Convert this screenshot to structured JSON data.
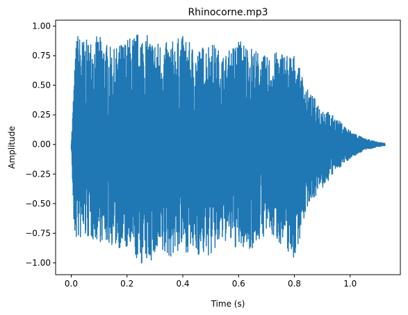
{
  "chart_data": {
    "type": "line",
    "title": "Rhinocorne.mp3",
    "xlabel": "Time (s)",
    "ylabel": "Amplitude",
    "xlim": [
      -0.056,
      1.18
    ],
    "ylim": [
      -1.1,
      1.05
    ],
    "xticks": [
      0.0,
      0.2,
      0.4,
      0.6,
      0.8,
      1.0
    ],
    "xtick_labels": [
      "0.0",
      "0.2",
      "0.4",
      "0.6",
      "0.8",
      "1.0"
    ],
    "yticks": [
      -1.0,
      -0.75,
      -0.5,
      -0.25,
      0.0,
      0.25,
      0.5,
      0.75,
      1.0
    ],
    "ytick_labels": [
      "−1.00",
      "−0.75",
      "−0.50",
      "−0.25",
      "0.00",
      "0.25",
      "0.50",
      "0.75",
      "1.00"
    ],
    "grid": false,
    "series": [
      {
        "color": "#1f77b4",
        "envelope": {
          "t": [
            0.0,
            0.005,
            0.01,
            0.02,
            0.05,
            0.1,
            0.15,
            0.2,
            0.25,
            0.3,
            0.35,
            0.4,
            0.45,
            0.5,
            0.55,
            0.6,
            0.65,
            0.7,
            0.75,
            0.8,
            0.85,
            0.9,
            0.95,
            1.0,
            1.05,
            1.1,
            1.125
          ],
          "max": [
            0.0,
            0.25,
            0.55,
            0.95,
            0.88,
            0.92,
            0.8,
            0.9,
            0.96,
            0.88,
            0.86,
            0.92,
            0.8,
            0.88,
            0.75,
            0.9,
            0.82,
            0.74,
            0.8,
            0.76,
            0.45,
            0.32,
            0.22,
            0.12,
            0.05,
            0.02,
            0.01
          ],
          "min": [
            0.0,
            -0.38,
            -0.8,
            -0.82,
            -0.8,
            -0.82,
            -0.86,
            -0.9,
            -1.02,
            -0.98,
            -0.96,
            -0.9,
            -0.94,
            -0.95,
            -0.82,
            -0.9,
            -0.88,
            -0.76,
            -0.84,
            -0.98,
            -0.5,
            -0.38,
            -0.22,
            -0.12,
            -0.05,
            -0.02,
            -0.01
          ]
        }
      }
    ]
  }
}
